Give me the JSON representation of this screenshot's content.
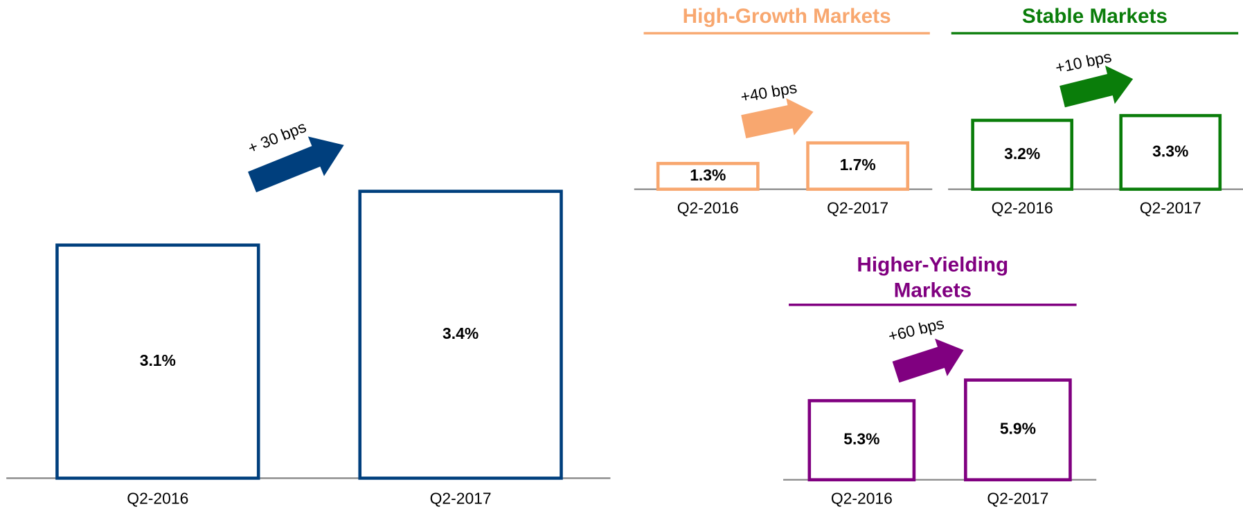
{
  "chart_data": [
    {
      "type": "bar",
      "color": "#003f7d",
      "categories": [
        "Q2-2016",
        "Q2-2017"
      ],
      "values": [
        3.1,
        3.4
      ],
      "value_labels": [
        "3.1%",
        "3.4%"
      ],
      "annotation": "+ 30 bps",
      "ylim": [
        1.8,
        3.5
      ]
    },
    {
      "type": "bar",
      "title": "High-Growth Markets",
      "color": "#f8a76f",
      "categories": [
        "Q2-2016",
        "Q2-2017"
      ],
      "values": [
        1.3,
        1.7
      ],
      "value_labels": [
        "1.3%",
        "1.7%"
      ],
      "annotation": "+40 bps",
      "ylim": [
        0.8,
        2.0
      ]
    },
    {
      "type": "bar",
      "title": "Stable Markets",
      "color": "#0a7d0a",
      "categories": [
        "Q2-2016",
        "Q2-2017"
      ],
      "values": [
        3.2,
        3.3
      ],
      "value_labels": [
        "3.2%",
        "3.3%"
      ],
      "annotation": "+10 bps",
      "ylim": [
        1.75,
        3.5
      ]
    },
    {
      "type": "bar",
      "title": "Higher-Yielding Markets",
      "color": "#800080",
      "categories": [
        "Q2-2016",
        "Q2-2017"
      ],
      "values": [
        5.3,
        5.9
      ],
      "value_labels": [
        "5.3%",
        "5.9%"
      ],
      "annotation": "+60 bps",
      "ylim": [
        3.0,
        6.5
      ]
    }
  ]
}
